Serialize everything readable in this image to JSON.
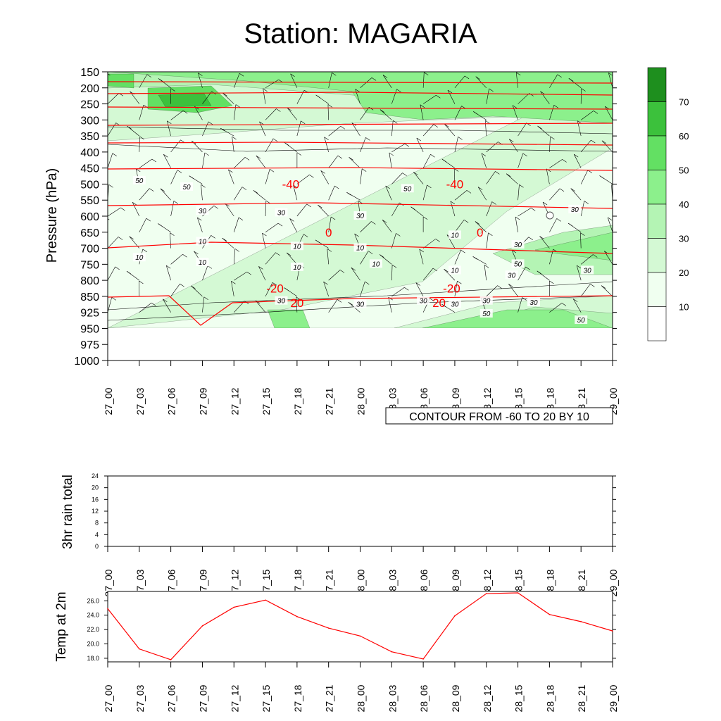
{
  "title": "Station: MAGARIA",
  "colors": {
    "fill_levels": [
      "#ffffff",
      "#f0fff0",
      "#d4f9d4",
      "#b4f4b4",
      "#8cf08c",
      "#63e063",
      "#3cc13c",
      "#1e8f1e"
    ],
    "isotherm": "#ff0000",
    "contour": "#000000",
    "temp_line": "#ff0000"
  },
  "time_labels": [
    "27_00",
    "27_03",
    "27_06",
    "27_09",
    "27_12",
    "27_15",
    "27_18",
    "27_21",
    "28_00",
    "28_03",
    "28_06",
    "28_09",
    "28_12",
    "28_15",
    "28_18",
    "28_21",
    "29_00"
  ],
  "main_panel": {
    "ylabel": "Pressure (hPa)",
    "pressure_levels": [
      "150",
      "200",
      "250",
      "300",
      "350",
      "400",
      "450",
      "500",
      "550",
      "600",
      "650",
      "700",
      "750",
      "800",
      "850",
      "925",
      "950",
      "975",
      "1000"
    ],
    "contour_info": "CONTOUR FROM -60 TO 20 BY 10",
    "colorbar_labels": [
      "10",
      "20",
      "30",
      "40",
      "50",
      "60",
      "70"
    ],
    "isotherm_labels": [
      {
        "text": "-40",
        "t": 5.8,
        "p": 11
      },
      {
        "text": "-40",
        "t": 11.0,
        "p": 11
      },
      {
        "text": "-20",
        "t": 5.3,
        "p": 4.5
      },
      {
        "text": "-20",
        "t": 10.9,
        "p": 4.5
      },
      {
        "text": "0",
        "t": 7.0,
        "p": 8
      },
      {
        "text": "0",
        "t": 11.8,
        "p": 8
      },
      {
        "text": "20",
        "t": 6.0,
        "p": 3.6
      },
      {
        "text": "20",
        "t": 10.5,
        "p": 3.6
      }
    ],
    "rh_labels": [
      {
        "text": "50",
        "t": 1.0,
        "p": 11.2
      },
      {
        "text": "50",
        "t": 2.5,
        "p": 10.8
      },
      {
        "text": "30",
        "t": 3.0,
        "p": 9.3
      },
      {
        "text": "30",
        "t": 5.5,
        "p": 9.2
      },
      {
        "text": "30",
        "t": 8.0,
        "p": 9.0
      },
      {
        "text": "50",
        "t": 9.5,
        "p": 10.7
      },
      {
        "text": "30",
        "t": 14.8,
        "p": 9.4
      },
      {
        "text": "10",
        "t": 1.0,
        "p": 6.4
      },
      {
        "text": "10",
        "t": 3.0,
        "p": 6.1
      },
      {
        "text": "10",
        "t": 6.0,
        "p": 5.8
      },
      {
        "text": "10",
        "t": 8.5,
        "p": 6.0
      },
      {
        "text": "30",
        "t": 13.0,
        "p": 7.2
      },
      {
        "text": "10",
        "t": 11.0,
        "p": 7.8
      },
      {
        "text": "10",
        "t": 11.0,
        "p": 5.6
      },
      {
        "text": "30",
        "t": 12.8,
        "p": 5.3
      },
      {
        "text": "30",
        "t": 15.2,
        "p": 5.6
      },
      {
        "text": "10",
        "t": 3.0,
        "p": 7.4
      },
      {
        "text": "10",
        "t": 6.0,
        "p": 7.1
      },
      {
        "text": "10",
        "t": 8.0,
        "p": 7.0
      },
      {
        "text": "50",
        "t": 13.0,
        "p": 6.0
      },
      {
        "text": "30",
        "t": 10.0,
        "p": 3.7
      },
      {
        "text": "30",
        "t": 12.0,
        "p": 3.7
      },
      {
        "text": "30",
        "t": 5.5,
        "p": 3.7
      },
      {
        "text": "30",
        "t": 8.0,
        "p": 3.5
      },
      {
        "text": "30",
        "t": 11.0,
        "p": 3.5
      },
      {
        "text": "30",
        "t": 13.5,
        "p": 3.6
      },
      {
        "text": "50",
        "t": 12.0,
        "p": 2.9
      },
      {
        "text": "50",
        "t": 15.0,
        "p": 2.5
      }
    ]
  },
  "rain_panel": {
    "ylabel": "3hr rain total",
    "yticks": [
      "0",
      "4",
      "8",
      "12",
      "16",
      "20",
      "24"
    ],
    "ylim": [
      0,
      24
    ],
    "values": [
      0,
      0,
      0,
      0,
      0,
      0,
      0,
      0,
      0,
      0,
      0,
      0,
      0,
      0,
      0,
      0,
      0
    ]
  },
  "temp_panel": {
    "ylabel": "Temp at 2m",
    "yticks": [
      "18.0",
      "20.0",
      "22.0",
      "24.0",
      "26.0"
    ],
    "ylim": [
      17.5,
      27.3
    ]
  },
  "chart_data": {
    "type": "line",
    "title": "Temp at 2m",
    "xlabel": "",
    "ylabel": "Temp at 2m",
    "x": [
      "27_00",
      "27_03",
      "27_06",
      "27_09",
      "27_12",
      "27_15",
      "27_18",
      "27_21",
      "28_00",
      "28_03",
      "28_06",
      "28_09",
      "28_12",
      "28_15",
      "28_18",
      "28_21",
      "29_00"
    ],
    "series": [
      {
        "name": "Temp at 2m",
        "values": [
          24.9,
          19.3,
          17.8,
          22.5,
          25.1,
          26.1,
          23.8,
          22.2,
          21.1,
          18.9,
          17.9,
          23.9,
          27.0,
          27.1,
          24.1,
          23.1,
          21.8
        ]
      }
    ],
    "ylim": [
      17.5,
      27.3
    ]
  }
}
